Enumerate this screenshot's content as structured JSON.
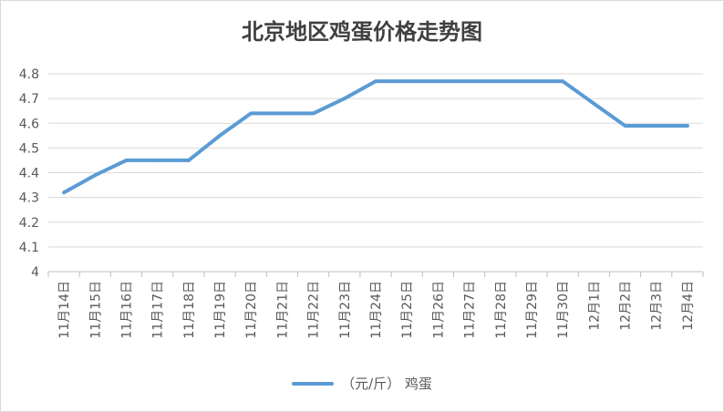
{
  "chart_data": {
    "type": "line",
    "title": "北京地区鸡蛋价格走势图",
    "xlabel": "",
    "ylabel": "",
    "categories": [
      "11月14日",
      "11月15日",
      "11月16日",
      "11月17日",
      "11月18日",
      "11月19日",
      "11月20日",
      "11月21日",
      "11月22日",
      "11月23日",
      "11月24日",
      "11月25日",
      "11月26日",
      "11月27日",
      "11月28日",
      "11月29日",
      "11月30日",
      "12月1日",
      "12月2日",
      "12月3日",
      "12月4日"
    ],
    "series": [
      {
        "name": "（元/斤） 鸡蛋",
        "values": [
          4.32,
          4.39,
          4.45,
          4.45,
          4.45,
          4.55,
          4.64,
          4.64,
          4.64,
          4.7,
          4.77,
          4.77,
          4.77,
          4.77,
          4.77,
          4.77,
          4.77,
          4.68,
          4.59,
          4.59,
          4.59
        ]
      }
    ],
    "yticks": [
      "4",
      "4.1",
      "4.2",
      "4.3",
      "4.4",
      "4.5",
      "4.6",
      "4.7",
      "4.8"
    ],
    "ylim": [
      4,
      4.8
    ],
    "grid": true,
    "legend_position": "bottom",
    "line_color": "#5b9bd5"
  }
}
